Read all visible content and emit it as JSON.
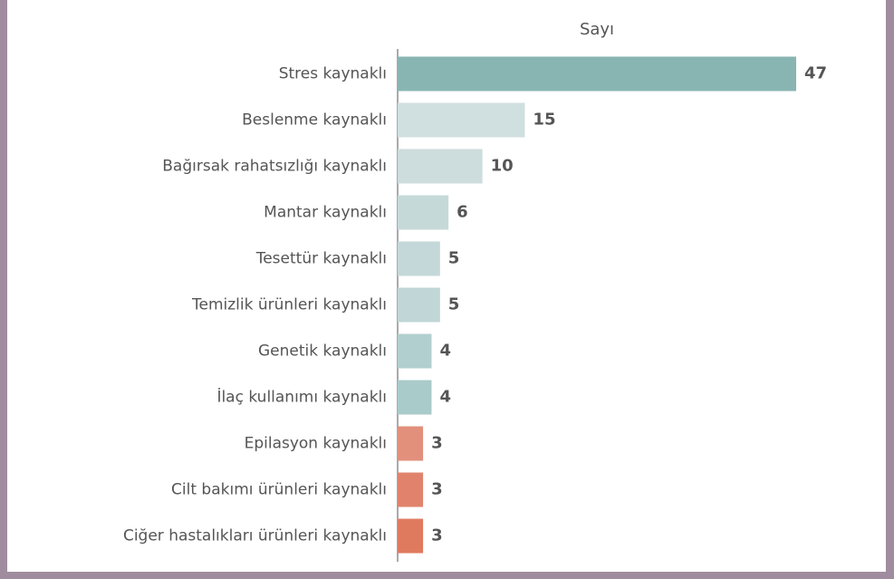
{
  "chart_data": {
    "type": "bar",
    "orientation": "horizontal",
    "axis_title": "Sayı",
    "categories": [
      "Stres kaynaklı",
      "Beslenme kaynaklı",
      "Bağırsak rahatsızlığı kaynaklı",
      "Mantar kaynaklı",
      "Tesettür kaynaklı",
      "Temizlik ürünleri kaynaklı",
      "Genetik kaynaklı",
      "İlaç kullanımı kaynaklı",
      "Epilasyon kaynaklı",
      "Cilt bakımı ürünleri kaynaklı",
      "Ciğer hastalıkları ürünleri kaynaklı"
    ],
    "values": [
      47,
      15,
      10,
      6,
      5,
      5,
      4,
      4,
      3,
      3,
      3
    ],
    "colors": [
      "#88b5b2",
      "#d0dfdf",
      "#cddcdc",
      "#c6d9d9",
      "#c4d8d9",
      "#c1d6d6",
      "#b2cfcf",
      "#a9cbca",
      "#e2907c",
      "#e1836c",
      "#e07a5f"
    ]
  }
}
